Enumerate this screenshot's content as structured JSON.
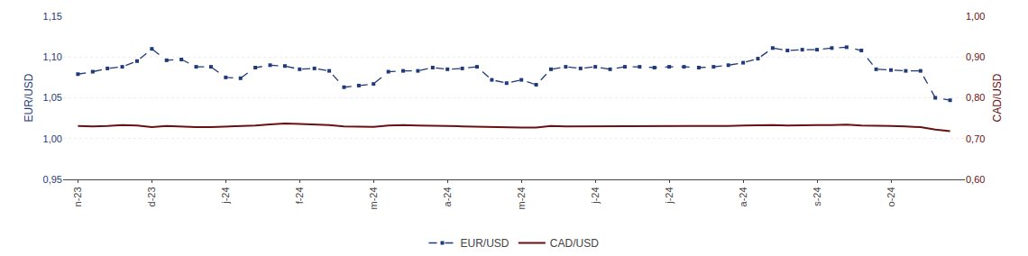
{
  "chart_data": {
    "type": "line",
    "categories": [
      "n-23",
      null,
      null,
      null,
      null,
      "d-23",
      null,
      null,
      null,
      null,
      "j-24",
      null,
      null,
      null,
      null,
      "f-24",
      null,
      null,
      null,
      null,
      "m-24",
      null,
      null,
      null,
      null,
      "a-24",
      null,
      null,
      null,
      null,
      "m-24",
      null,
      null,
      null,
      null,
      "j-24",
      null,
      null,
      null,
      null,
      "j-24",
      null,
      null,
      null,
      null,
      "a-24",
      null,
      null,
      null,
      null,
      "s-24",
      null,
      null,
      null,
      null,
      "o-24",
      null,
      null,
      null,
      null
    ],
    "series": [
      {
        "name": "EUR/USD",
        "color": "#1F3A7A",
        "line_style": "dashed",
        "marker": "square",
        "values": [
          1.079,
          1.082,
          1.086,
          1.088,
          1.095,
          1.11,
          1.096,
          1.097,
          1.088,
          1.088,
          1.075,
          1.074,
          1.087,
          1.09,
          1.089,
          1.085,
          1.086,
          1.083,
          1.063,
          1.065,
          1.067,
          1.082,
          1.083,
          1.083,
          1.087,
          1.085,
          1.086,
          1.088,
          1.072,
          1.068,
          1.072,
          1.066,
          1.085,
          1.088,
          1.086,
          1.088,
          1.085,
          1.088,
          1.088,
          1.087,
          1.088,
          1.088,
          1.087,
          1.088,
          1.09,
          1.093,
          1.098,
          1.111,
          1.108,
          1.109,
          1.109,
          1.111,
          1.112,
          1.108,
          1.085,
          1.084,
          1.083,
          1.083,
          1.05,
          1.047
        ]
      },
      {
        "name": "CAD/USD",
        "color": "#6B1010",
        "line_style": "solid",
        "axis": "y2",
        "values": [
          0.731,
          0.73,
          0.731,
          0.733,
          0.732,
          0.728,
          0.731,
          0.729,
          0.728,
          0.728,
          0.729,
          0.73,
          0.732,
          0.735,
          0.737,
          0.736,
          0.735,
          0.733,
          0.73,
          0.73,
          0.729,
          0.732,
          0.733,
          0.732,
          0.732,
          0.731,
          0.73,
          0.729,
          0.728,
          0.727,
          0.727,
          0.727,
          0.731,
          0.73,
          0.73,
          0.731,
          0.73,
          0.731,
          0.731,
          0.731,
          0.731,
          0.731,
          0.731,
          0.731,
          0.731,
          0.732,
          0.733,
          0.733,
          0.732,
          0.733,
          0.733,
          0.733,
          0.734,
          0.732,
          0.732,
          0.731,
          0.73,
          0.728,
          0.722,
          0.718
        ]
      }
    ],
    "ylabel": "EUR/USD",
    "y2label": "CAD/USD",
    "ylim": [
      0.95,
      1.15
    ],
    "yticks": [
      {
        "value": 0.95,
        "label": "0,95"
      },
      {
        "value": 1.0,
        "label": "1,00"
      },
      {
        "value": 1.05,
        "label": "1,05"
      },
      {
        "value": 1.1,
        "label": "1,10"
      },
      {
        "value": 1.15,
        "label": "1,15"
      }
    ],
    "y2lim": [
      0.6,
      1.0
    ],
    "y2ticks": [
      {
        "value": 0.6,
        "label": "0,60"
      },
      {
        "value": 0.7,
        "label": "0,70"
      },
      {
        "value": 0.8,
        "label": "0,80"
      },
      {
        "value": 0.9,
        "label": "0,90"
      },
      {
        "value": 1.0,
        "label": "1,00"
      }
    ],
    "grid": true,
    "legend": "bottom"
  }
}
